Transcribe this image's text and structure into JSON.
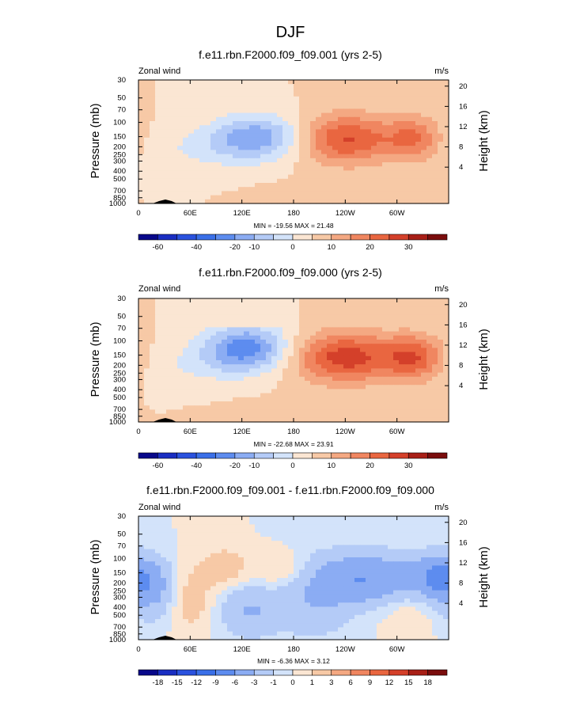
{
  "figure": {
    "title": "DJF"
  },
  "chart_data": [
    {
      "type": "heatmap",
      "title": "f.e11.rbn.F2000.f09_f09.001 (yrs 2-5)",
      "left_label": "Zonal wind",
      "right_label": "m/s",
      "ylabel": "Pressure (mb)",
      "ylabel_right": "Height (km)",
      "x_ticks": [
        "0",
        "60E",
        "120E",
        "180",
        "120W",
        "60W"
      ],
      "y_ticks": [
        "30",
        "50",
        "70",
        "100",
        "150",
        "200",
        "250",
        "300",
        "400",
        "500",
        "700",
        "850",
        "1000"
      ],
      "height_ticks": [
        "20",
        "16",
        "12",
        "8",
        "4"
      ],
      "stats": "MIN = -19.56  MAX = 21.48",
      "colorbar_ticks": [
        "-60",
        "-40",
        "-20",
        "-10",
        "0",
        "10",
        "20",
        "30"
      ],
      "features": [
        {
          "lon": 140,
          "p": 150,
          "value": -18,
          "sx": 40,
          "sy": 0.45
        },
        {
          "lon": 80,
          "p": 220,
          "value": -5,
          "sx": 50,
          "sy": 0.4
        },
        {
          "lon": 240,
          "p": 160,
          "value": 21,
          "sx": 40,
          "sy": 0.5
        },
        {
          "lon": 320,
          "p": 160,
          "value": 14,
          "sx": 22,
          "sy": 0.45
        },
        {
          "lon": 210,
          "p": 800,
          "value": 3,
          "sx": 40,
          "sy": 0.25
        }
      ]
    },
    {
      "type": "heatmap",
      "title": "f.e11.rbn.F2000.f09_f09.000 (yrs 2-5)",
      "left_label": "Zonal wind",
      "right_label": "m/s",
      "ylabel": "Pressure (mb)",
      "ylabel_right": "Height (km)",
      "x_ticks": [
        "0",
        "60E",
        "120E",
        "180",
        "120W",
        "60W"
      ],
      "y_ticks": [
        "30",
        "50",
        "70",
        "100",
        "150",
        "200",
        "250",
        "300",
        "400",
        "500",
        "700",
        "850",
        "1000"
      ],
      "height_ticks": [
        "20",
        "16",
        "12",
        "8",
        "4"
      ],
      "stats": "MIN = -22.68  MAX = 23.91",
      "colorbar_ticks": [
        "-60",
        "-40",
        "-20",
        "-10",
        "0",
        "10",
        "20",
        "30"
      ],
      "features": [
        {
          "lon": 125,
          "p": 120,
          "value": -22,
          "sx": 35,
          "sy": 0.45
        },
        {
          "lon": 80,
          "p": 200,
          "value": -5,
          "sx": 50,
          "sy": 0.4
        },
        {
          "lon": 240,
          "p": 160,
          "value": 23,
          "sx": 42,
          "sy": 0.5
        },
        {
          "lon": 320,
          "p": 160,
          "value": 18,
          "sx": 24,
          "sy": 0.45
        },
        {
          "lon": 200,
          "p": 750,
          "value": 4,
          "sx": 50,
          "sy": 0.25
        }
      ]
    },
    {
      "type": "heatmap",
      "title": "f.e11.rbn.F2000.f09_f09.001 - f.e11.rbn.F2000.f09_f09.000",
      "left_label": "Zonal wind",
      "right_label": "m/s",
      "ylabel": "Pressure (mb)",
      "ylabel_right": "Height (km)",
      "x_ticks": [
        "0",
        "60E",
        "120E",
        "180",
        "120W",
        "60W"
      ],
      "y_ticks": [
        "30",
        "50",
        "70",
        "100",
        "150",
        "200",
        "250",
        "300",
        "400",
        "500",
        "700",
        "850",
        "1000"
      ],
      "height_ticks": [
        "20",
        "16",
        "12",
        "8",
        "4"
      ],
      "stats": "MIN = -6.36  MAX = 3.12",
      "colorbar_ticks": [
        "-18",
        "-15",
        "-12",
        "-9",
        "-6",
        "-3",
        "-1",
        "0",
        "1",
        "3",
        "6",
        "9",
        "12",
        "15",
        "18"
      ],
      "features": [
        {
          "lon": 270,
          "p": 180,
          "value": -6,
          "sx": 60,
          "sy": 0.5
        },
        {
          "lon": 350,
          "p": 170,
          "value": -5,
          "sx": 18,
          "sy": 0.4
        },
        {
          "lon": 15,
          "p": 250,
          "value": -3,
          "sx": 20,
          "sy": 0.6
        },
        {
          "lon": 130,
          "p": 450,
          "value": -3,
          "sx": 25,
          "sy": 0.5
        },
        {
          "lon": 205,
          "p": 350,
          "value": -2,
          "sx": 30,
          "sy": 0.8
        },
        {
          "lon": 60,
          "p": 300,
          "value": 2,
          "sx": 18,
          "sy": 0.7
        },
        {
          "lon": 175,
          "p": 150,
          "value": 2.5,
          "sx": 28,
          "sy": 0.4
        },
        {
          "lon": 100,
          "p": 130,
          "value": 2,
          "sx": 18,
          "sy": 0.4
        },
        {
          "lon": 310,
          "p": 300,
          "value": 1.5,
          "sx": 25,
          "sy": 0.6
        }
      ]
    }
  ]
}
